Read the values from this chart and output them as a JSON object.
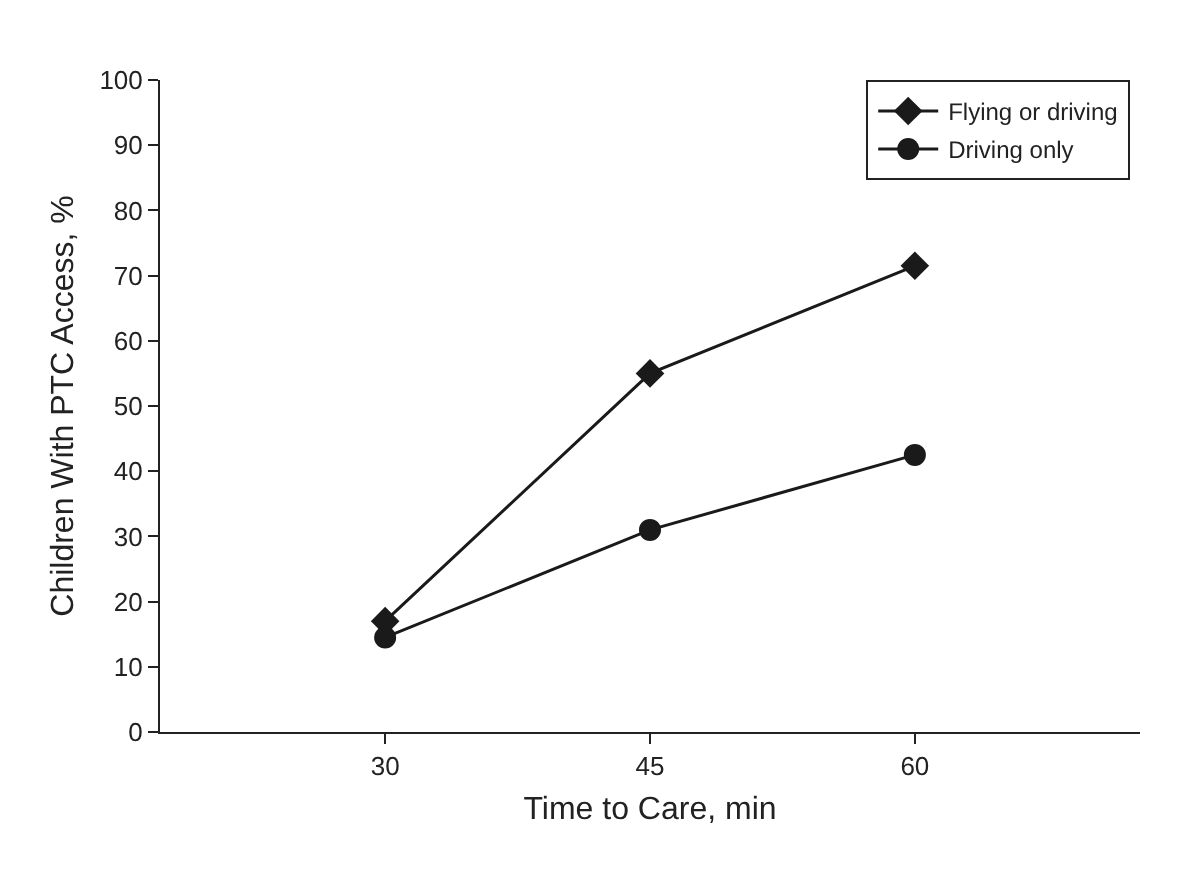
{
  "chart_data": {
    "type": "line",
    "xlabel": "Time to Care, min",
    "ylabel": "Children With PTC Access, %",
    "categories": [
      "30",
      "45",
      "60"
    ],
    "series": [
      {
        "name": "Flying or driving",
        "color": "#1a1a1a",
        "marker": "diamond",
        "values": [
          17,
          55,
          71.5
        ]
      },
      {
        "name": "Driving only",
        "color": "#1a1a1a",
        "marker": "circle",
        "values": [
          14.5,
          31,
          42.5
        ]
      }
    ],
    "ylim": [
      0,
      100
    ],
    "yticks": [
      0,
      10,
      20,
      30,
      40,
      50,
      60,
      70,
      80,
      90,
      100
    ],
    "grid": false,
    "legend": "top right",
    "line_style": "solid"
  }
}
